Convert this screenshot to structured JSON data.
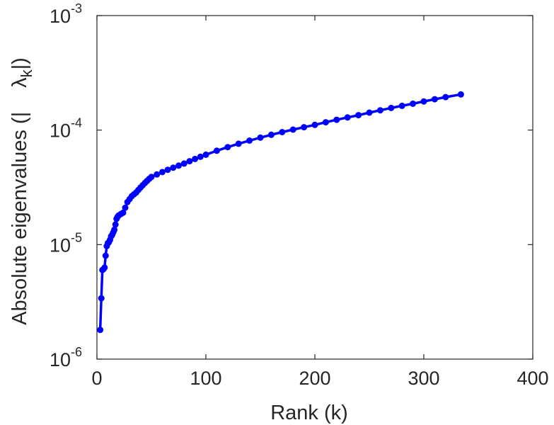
{
  "chart_data": {
    "type": "line",
    "xlabel": "Rank (k)",
    "ylabel_parts": {
      "prefix": "Absolute eigenvalues (|",
      "symbol": "λ",
      "subscript": "k",
      "suffix": "|)"
    },
    "x_scale": "linear",
    "y_scale": "log",
    "xlim": [
      0,
      400
    ],
    "ylim": [
      1e-06,
      0.001
    ],
    "xticks": [
      {
        "value": 0,
        "label": "0"
      },
      {
        "value": 100,
        "label": "100"
      },
      {
        "value": 200,
        "label": "200"
      },
      {
        "value": 300,
        "label": "300"
      },
      {
        "value": 400,
        "label": "400"
      }
    ],
    "yticks": [
      {
        "value": 1e-06,
        "base": "10",
        "exp": "-6"
      },
      {
        "value": 1e-05,
        "base": "10",
        "exp": "-5"
      },
      {
        "value": 0.0001,
        "base": "10",
        "exp": "-4"
      },
      {
        "value": 0.001,
        "base": "10",
        "exp": "-3"
      }
    ],
    "grid": false,
    "line_color": "#0000ff",
    "marker": "circle",
    "x": [
      3,
      4,
      5,
      6,
      7,
      8,
      9,
      10,
      11,
      12,
      13,
      14,
      15,
      16,
      17,
      18,
      19,
      20,
      22,
      24,
      26,
      28,
      30,
      32,
      34,
      36,
      38,
      40,
      42,
      44,
      46,
      48,
      50,
      55,
      60,
      65,
      70,
      75,
      80,
      85,
      90,
      95,
      100,
      110,
      120,
      130,
      140,
      150,
      160,
      170,
      180,
      190,
      200,
      210,
      220,
      230,
      240,
      250,
      260,
      270,
      280,
      290,
      300,
      310,
      320,
      334
    ],
    "y": [
      1.8e-06,
      3.4e-06,
      6e-06,
      6.1e-06,
      6.3e-06,
      8e-06,
      9.7e-06,
      1.03e-05,
      1.05e-05,
      1.1e-05,
      1.18e-05,
      1.22e-05,
      1.28e-05,
      1.35e-05,
      1.5e-05,
      1.68e-05,
      1.75e-05,
      1.8e-05,
      1.85e-05,
      1.9e-05,
      2.1e-05,
      2.35e-05,
      2.5e-05,
      2.65e-05,
      2.75e-05,
      2.85e-05,
      3e-05,
      3.15e-05,
      3.3e-05,
      3.45e-05,
      3.6e-05,
      3.75e-05,
      3.9e-05,
      4.1e-05,
      4.3e-05,
      4.5e-05,
      4.7e-05,
      4.9e-05,
      5.1e-05,
      5.35e-05,
      5.6e-05,
      5.85e-05,
      6.1e-05,
      6.6e-05,
      7.1e-05,
      7.6e-05,
      8.1e-05,
      8.6e-05,
      9.1e-05,
      9.6e-05,
      0.000101,
      0.000106,
      0.000111,
      0.000117,
      0.000123,
      0.000129,
      0.000135,
      0.000142,
      0.000149,
      0.000156,
      0.000163,
      0.00017,
      0.000178,
      0.000186,
      0.000194,
      0.000205
    ]
  }
}
